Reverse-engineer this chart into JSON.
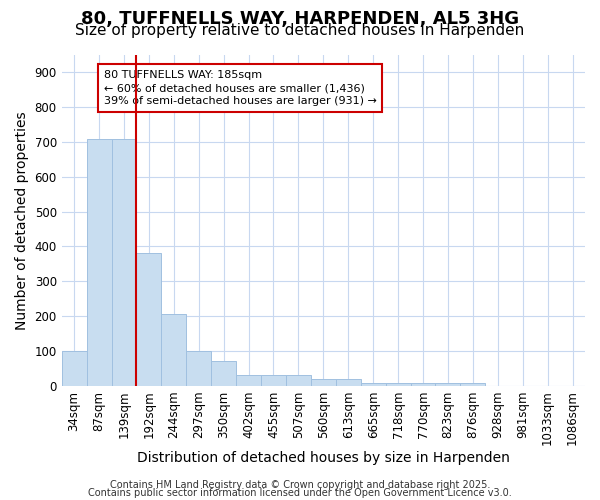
{
  "title1": "80, TUFFNELLS WAY, HARPENDEN, AL5 3HG",
  "title2": "Size of property relative to detached houses in Harpenden",
  "xlabel": "Distribution of detached houses by size in Harpenden",
  "ylabel": "Number of detached properties",
  "categories": [
    "34sqm",
    "87sqm",
    "139sqm",
    "192sqm",
    "244sqm",
    "297sqm",
    "350sqm",
    "402sqm",
    "455sqm",
    "507sqm",
    "560sqm",
    "613sqm",
    "665sqm",
    "718sqm",
    "770sqm",
    "823sqm",
    "876sqm",
    "928sqm",
    "981sqm",
    "1033sqm",
    "1086sqm"
  ],
  "values": [
    100,
    710,
    710,
    380,
    207,
    100,
    70,
    32,
    32,
    32,
    20,
    20,
    8,
    8,
    8,
    8,
    8,
    0,
    0,
    0,
    0
  ],
  "bar_color": "#c8ddf0",
  "bar_edgecolor": "#a0c0e0",
  "bg_color": "#ffffff",
  "grid_color": "#c8d8f0",
  "vline_color": "#cc0000",
  "vline_x_index": 3,
  "annotation_text": "80 TUFFNELLS WAY: 185sqm\n← 60% of detached houses are smaller (1,436)\n39% of semi-detached houses are larger (931) →",
  "annotation_box_edgecolor": "#cc0000",
  "annotation_text_color": "#000000",
  "ylim": [
    0,
    950
  ],
  "yticks": [
    0,
    100,
    200,
    300,
    400,
    500,
    600,
    700,
    800,
    900
  ],
  "footer1": "Contains HM Land Registry data © Crown copyright and database right 2025.",
  "footer2": "Contains public sector information licensed under the Open Government Licence v3.0.",
  "title_fontsize": 13,
  "subtitle_fontsize": 11,
  "axis_fontsize": 10,
  "tick_fontsize": 8.5,
  "footer_fontsize": 7
}
